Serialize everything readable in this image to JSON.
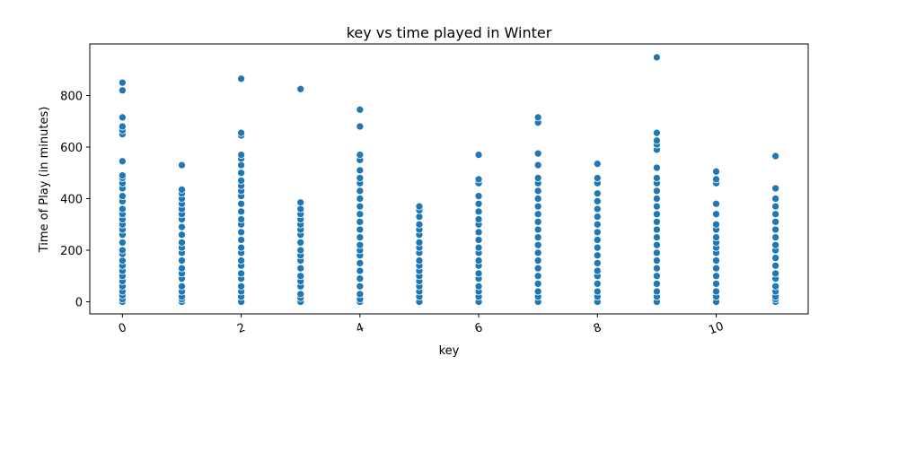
{
  "chart_data": {
    "type": "scatter",
    "title": "key vs time played in Winter",
    "x_label": "key",
    "y_label": "Time of Play (in minutes)",
    "color": "#1f77b4",
    "xlim": [
      -0.55,
      11.55
    ],
    "xticks": [
      0,
      2,
      4,
      6,
      8,
      10
    ],
    "ylim": [
      -47,
      1000
    ],
    "yticks": [
      0,
      200,
      400,
      600,
      800
    ],
    "points": [
      [
        0,
        0
      ],
      [
        0,
        10
      ],
      [
        0,
        25
      ],
      [
        0,
        40
      ],
      [
        0,
        60
      ],
      [
        0,
        80
      ],
      [
        0,
        100
      ],
      [
        0,
        120
      ],
      [
        0,
        140
      ],
      [
        0,
        160
      ],
      [
        0,
        185
      ],
      [
        0,
        200
      ],
      [
        0,
        230
      ],
      [
        0,
        260
      ],
      [
        0,
        280
      ],
      [
        0,
        300
      ],
      [
        0,
        320
      ],
      [
        0,
        340
      ],
      [
        0,
        360
      ],
      [
        0,
        390
      ],
      [
        0,
        410
      ],
      [
        0,
        440
      ],
      [
        0,
        460
      ],
      [
        0,
        480
      ],
      [
        0,
        490
      ],
      [
        0,
        545
      ],
      [
        0,
        650
      ],
      [
        0,
        665
      ],
      [
        0,
        680
      ],
      [
        0,
        715
      ],
      [
        0,
        820
      ],
      [
        0,
        850
      ],
      [
        1,
        0
      ],
      [
        1,
        10
      ],
      [
        1,
        20
      ],
      [
        1,
        40
      ],
      [
        1,
        60
      ],
      [
        1,
        90
      ],
      [
        1,
        110
      ],
      [
        1,
        130
      ],
      [
        1,
        160
      ],
      [
        1,
        190
      ],
      [
        1,
        210
      ],
      [
        1,
        230
      ],
      [
        1,
        260
      ],
      [
        1,
        290
      ],
      [
        1,
        320
      ],
      [
        1,
        340
      ],
      [
        1,
        360
      ],
      [
        1,
        380
      ],
      [
        1,
        400
      ],
      [
        1,
        420
      ],
      [
        1,
        435
      ],
      [
        1,
        530
      ],
      [
        2,
        0
      ],
      [
        2,
        20
      ],
      [
        2,
        40
      ],
      [
        2,
        60
      ],
      [
        2,
        90
      ],
      [
        2,
        110
      ],
      [
        2,
        140
      ],
      [
        2,
        160
      ],
      [
        2,
        190
      ],
      [
        2,
        210
      ],
      [
        2,
        240
      ],
      [
        2,
        270
      ],
      [
        2,
        300
      ],
      [
        2,
        320
      ],
      [
        2,
        350
      ],
      [
        2,
        380
      ],
      [
        2,
        410
      ],
      [
        2,
        430
      ],
      [
        2,
        450
      ],
      [
        2,
        470
      ],
      [
        2,
        500
      ],
      [
        2,
        530
      ],
      [
        2,
        555
      ],
      [
        2,
        570
      ],
      [
        2,
        645
      ],
      [
        2,
        655
      ],
      [
        2,
        865
      ],
      [
        3,
        0
      ],
      [
        3,
        15
      ],
      [
        3,
        30
      ],
      [
        3,
        60
      ],
      [
        3,
        80
      ],
      [
        3,
        100
      ],
      [
        3,
        130
      ],
      [
        3,
        160
      ],
      [
        3,
        180
      ],
      [
        3,
        200
      ],
      [
        3,
        230
      ],
      [
        3,
        260
      ],
      [
        3,
        280
      ],
      [
        3,
        300
      ],
      [
        3,
        320
      ],
      [
        3,
        340
      ],
      [
        3,
        360
      ],
      [
        3,
        385
      ],
      [
        3,
        825
      ],
      [
        4,
        0
      ],
      [
        4,
        10
      ],
      [
        4,
        30
      ],
      [
        4,
        60
      ],
      [
        4,
        90
      ],
      [
        4,
        120
      ],
      [
        4,
        150
      ],
      [
        4,
        180
      ],
      [
        4,
        200
      ],
      [
        4,
        220
      ],
      [
        4,
        250
      ],
      [
        4,
        280
      ],
      [
        4,
        310
      ],
      [
        4,
        340
      ],
      [
        4,
        370
      ],
      [
        4,
        400
      ],
      [
        4,
        430
      ],
      [
        4,
        460
      ],
      [
        4,
        480
      ],
      [
        4,
        510
      ],
      [
        4,
        550
      ],
      [
        4,
        570
      ],
      [
        4,
        680
      ],
      [
        4,
        745
      ],
      [
        5,
        0
      ],
      [
        5,
        20
      ],
      [
        5,
        40
      ],
      [
        5,
        60
      ],
      [
        5,
        80
      ],
      [
        5,
        100
      ],
      [
        5,
        120
      ],
      [
        5,
        140
      ],
      [
        5,
        160
      ],
      [
        5,
        190
      ],
      [
        5,
        210
      ],
      [
        5,
        230
      ],
      [
        5,
        260
      ],
      [
        5,
        280
      ],
      [
        5,
        300
      ],
      [
        5,
        330
      ],
      [
        5,
        355
      ],
      [
        5,
        370
      ],
      [
        6,
        0
      ],
      [
        6,
        20
      ],
      [
        6,
        40
      ],
      [
        6,
        60
      ],
      [
        6,
        90
      ],
      [
        6,
        110
      ],
      [
        6,
        140
      ],
      [
        6,
        160
      ],
      [
        6,
        190
      ],
      [
        6,
        210
      ],
      [
        6,
        240
      ],
      [
        6,
        270
      ],
      [
        6,
        300
      ],
      [
        6,
        320
      ],
      [
        6,
        350
      ],
      [
        6,
        380
      ],
      [
        6,
        410
      ],
      [
        6,
        460
      ],
      [
        6,
        475
      ],
      [
        6,
        570
      ],
      [
        7,
        0
      ],
      [
        7,
        20
      ],
      [
        7,
        40
      ],
      [
        7,
        70
      ],
      [
        7,
        100
      ],
      [
        7,
        130
      ],
      [
        7,
        160
      ],
      [
        7,
        190
      ],
      [
        7,
        220
      ],
      [
        7,
        250
      ],
      [
        7,
        280
      ],
      [
        7,
        310
      ],
      [
        7,
        340
      ],
      [
        7,
        370
      ],
      [
        7,
        400
      ],
      [
        7,
        430
      ],
      [
        7,
        460
      ],
      [
        7,
        480
      ],
      [
        7,
        530
      ],
      [
        7,
        575
      ],
      [
        7,
        695
      ],
      [
        7,
        715
      ],
      [
        8,
        0
      ],
      [
        8,
        20
      ],
      [
        8,
        40
      ],
      [
        8,
        70
      ],
      [
        8,
        100
      ],
      [
        8,
        120
      ],
      [
        8,
        150
      ],
      [
        8,
        180
      ],
      [
        8,
        210
      ],
      [
        8,
        240
      ],
      [
        8,
        270
      ],
      [
        8,
        300
      ],
      [
        8,
        330
      ],
      [
        8,
        360
      ],
      [
        8,
        390
      ],
      [
        8,
        420
      ],
      [
        8,
        460
      ],
      [
        8,
        480
      ],
      [
        8,
        535
      ],
      [
        9,
        0
      ],
      [
        9,
        20
      ],
      [
        9,
        40
      ],
      [
        9,
        70
      ],
      [
        9,
        100
      ],
      [
        9,
        130
      ],
      [
        9,
        160
      ],
      [
        9,
        190
      ],
      [
        9,
        220
      ],
      [
        9,
        250
      ],
      [
        9,
        280
      ],
      [
        9,
        310
      ],
      [
        9,
        340
      ],
      [
        9,
        370
      ],
      [
        9,
        400
      ],
      [
        9,
        430
      ],
      [
        9,
        460
      ],
      [
        9,
        480
      ],
      [
        9,
        520
      ],
      [
        9,
        590
      ],
      [
        9,
        610
      ],
      [
        9,
        625
      ],
      [
        9,
        655
      ],
      [
        9,
        948
      ],
      [
        10,
        0
      ],
      [
        10,
        20
      ],
      [
        10,
        40
      ],
      [
        10,
        70
      ],
      [
        10,
        100
      ],
      [
        10,
        130
      ],
      [
        10,
        160
      ],
      [
        10,
        190
      ],
      [
        10,
        210
      ],
      [
        10,
        230
      ],
      [
        10,
        250
      ],
      [
        10,
        280
      ],
      [
        10,
        300
      ],
      [
        10,
        340
      ],
      [
        10,
        380
      ],
      [
        10,
        460
      ],
      [
        10,
        475
      ],
      [
        10,
        505
      ],
      [
        11,
        0
      ],
      [
        11,
        10
      ],
      [
        11,
        20
      ],
      [
        11,
        40
      ],
      [
        11,
        60
      ],
      [
        11,
        90
      ],
      [
        11,
        110
      ],
      [
        11,
        140
      ],
      [
        11,
        170
      ],
      [
        11,
        200
      ],
      [
        11,
        220
      ],
      [
        11,
        250
      ],
      [
        11,
        280
      ],
      [
        11,
        310
      ],
      [
        11,
        340
      ],
      [
        11,
        370
      ],
      [
        11,
        400
      ],
      [
        11,
        440
      ],
      [
        11,
        565
      ]
    ]
  }
}
